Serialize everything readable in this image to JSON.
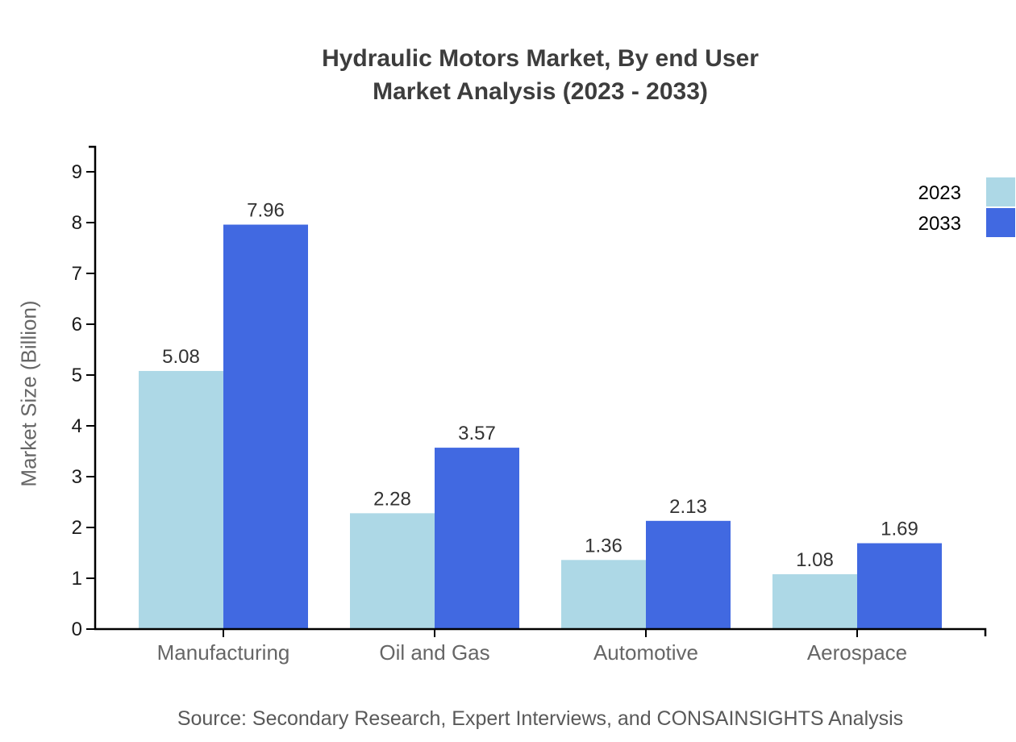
{
  "title": {
    "line1": "Hydraulic Motors Market, By end User",
    "line2": "Market Analysis (2023 - 2033)"
  },
  "source": "Source: Secondary Research, Expert Interviews, and CONSAINSIGHTS Analysis",
  "chart_data": {
    "type": "bar",
    "title": "Hydraulic Motors Market, By end User Market Analysis (2023 - 2033)",
    "categories": [
      "Manufacturing",
      "Oil and Gas",
      "Automotive",
      "Aerospace"
    ],
    "series": [
      {
        "name": "2023",
        "color": "#add8e6",
        "values": [
          5.08,
          2.28,
          1.36,
          1.08
        ]
      },
      {
        "name": "2033",
        "color": "#4169e1",
        "values": [
          7.96,
          3.57,
          2.13,
          1.69
        ]
      }
    ],
    "xlabel": "",
    "ylabel": "Market Size (Billion)",
    "ylim": [
      0,
      9
    ],
    "ytick_step": 1,
    "grid": false,
    "legend_position": "top-right",
    "value_label_decimals": 2,
    "colors": {
      "axis": "#000000",
      "tick_label": "#1a1a1a",
      "category_label": "#666666",
      "value_label": "#333333",
      "legend_text": "#000000"
    }
  }
}
